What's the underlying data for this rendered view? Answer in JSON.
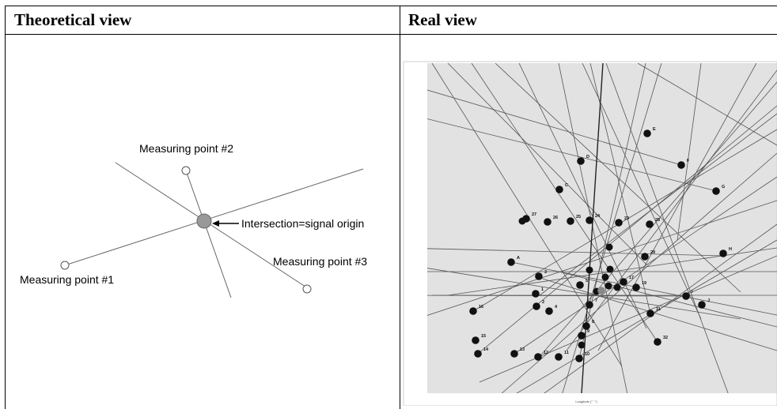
{
  "table": {
    "header_left": "Theoretical view",
    "header_right": "Real view"
  },
  "theoretical": {
    "label_point1": "Measuring point #1",
    "label_point2": "Measuring point #2",
    "label_point3": "Measuring point #3",
    "label_origin": "Intersection=signal origin"
  },
  "real": {
    "point_labels": [
      "E",
      "D",
      "F",
      "C",
      "G",
      "27",
      "26",
      "25",
      "24",
      "23",
      "28",
      "H",
      "A",
      "29",
      "3",
      "5",
      "17",
      "19",
      "I",
      "J",
      "1",
      "2",
      "4",
      "7",
      "31",
      "16",
      "15",
      "14",
      "13",
      "12",
      "11",
      "10",
      "32",
      "8",
      "9",
      "22"
    ],
    "x_axis_label": "Longitude (° ′ ″)"
  }
}
